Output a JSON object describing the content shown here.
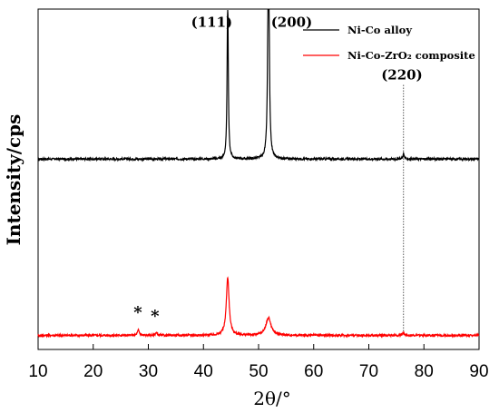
{
  "chart_data": {
    "type": "line",
    "xlabel": "2θ/°",
    "ylabel": "Intensity/cps",
    "xlim": [
      10,
      90
    ],
    "x_ticks": [
      10,
      20,
      30,
      40,
      50,
      60,
      70,
      80,
      90
    ],
    "y_ticks_shown": false,
    "grid": false,
    "legend_position": "top-right",
    "series": [
      {
        "name": "Ni-Co alloy",
        "color": "#000000",
        "baseline": 1.0,
        "noise": 0.006,
        "peaks": [
          {
            "x": 44.4,
            "height": 0.95,
            "width": 0.12
          },
          {
            "x": 51.8,
            "height": 1.52,
            "width": 0.14
          },
          {
            "x": 76.3,
            "height": 0.03,
            "width": 0.15
          }
        ]
      },
      {
        "name": "Ni-Co-ZrO₂ composite",
        "color": "#ff0000",
        "baseline": 0.0,
        "noise": 0.006,
        "peaks": [
          {
            "x": 28.2,
            "height": 0.03,
            "width": 0.2
          },
          {
            "x": 31.4,
            "height": 0.015,
            "width": 0.2
          },
          {
            "x": 44.4,
            "height": 0.33,
            "width": 0.3
          },
          {
            "x": 51.8,
            "height": 0.1,
            "width": 0.55
          },
          {
            "x": 76.3,
            "height": 0.015,
            "width": 0.2
          }
        ]
      }
    ],
    "annotations": [
      {
        "text": "(111)",
        "x": 41.5,
        "y": 1.75
      },
      {
        "text": "(200)",
        "x": 56.0,
        "y": 1.75
      },
      {
        "text": "(220)",
        "x": 76.0,
        "y": 1.45
      },
      {
        "text": "*",
        "x": 28.1,
        "y": 0.1
      },
      {
        "text": "*",
        "x": 31.2,
        "y": 0.08
      }
    ],
    "reference_line": {
      "x": 76.3
    }
  }
}
